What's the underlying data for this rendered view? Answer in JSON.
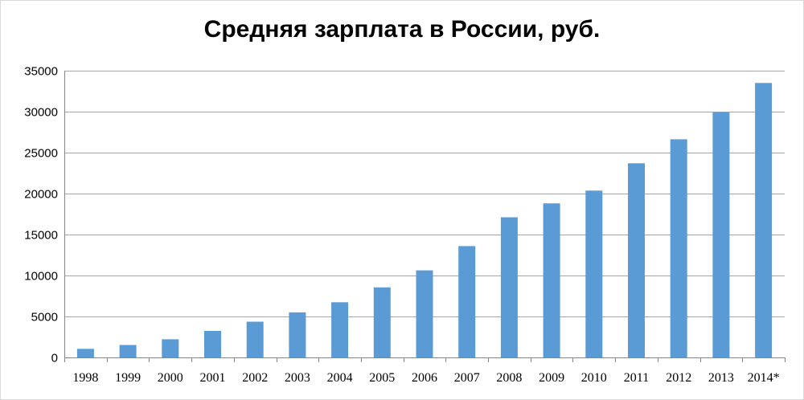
{
  "chart_data": {
    "type": "bar",
    "title": "Средняя зарплата в России, руб.",
    "xlabel": "",
    "ylabel": "",
    "categories": [
      "1998",
      "1999",
      "2000",
      "2001",
      "2002",
      "2003",
      "2004",
      "2005",
      "2006",
      "2007",
      "2008",
      "2009",
      "2010",
      "2011",
      "2012",
      "2013",
      "2014*"
    ],
    "values": [
      1050,
      1520,
      2220,
      3240,
      4360,
      5500,
      6740,
      8550,
      10630,
      13590,
      17110,
      18800,
      20360,
      23700,
      26630,
      29940,
      33500
    ],
    "ylim": [
      0,
      35000
    ],
    "yticks": [
      "0",
      "5000",
      "10000",
      "15000",
      "20000",
      "25000",
      "30000",
      "35000"
    ],
    "ytick_values": [
      0,
      5000,
      10000,
      15000,
      20000,
      25000,
      30000,
      35000
    ],
    "grid": true,
    "legend": "none",
    "colors": {
      "bar": "#5b9bd5",
      "grid": "#a6a6a6",
      "axis": "#868686"
    }
  }
}
